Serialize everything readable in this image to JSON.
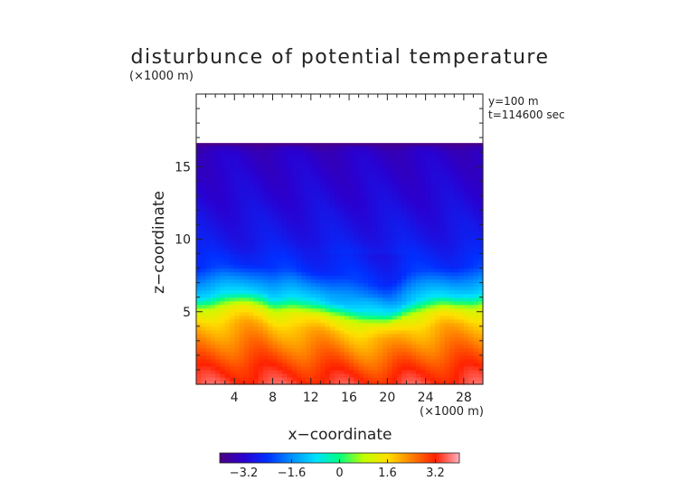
{
  "chart_data": {
    "type": "heatmap",
    "title": "disturbunce of potential temperature",
    "ylabel": "z−coordinate",
    "xlabel": "x−coordinate",
    "y_unit": "(×1000 m)",
    "x_unit": "(×1000 m)",
    "annotations": [
      "y=100 m",
      "t=114600 sec"
    ],
    "xlim": [
      0,
      30
    ],
    "ylim": [
      0,
      20
    ],
    "x_ticks": [
      4,
      8,
      12,
      16,
      20,
      24,
      28
    ],
    "y_ticks": [
      5,
      10,
      15
    ],
    "x_tick_labels": [
      "4",
      "8",
      "12",
      "16",
      "20",
      "24",
      "28"
    ],
    "y_tick_labels": [
      "5",
      "10",
      "15"
    ],
    "colorbar": {
      "range": [
        -4.0,
        4.0
      ],
      "ticks": [
        -3.2,
        -1.6,
        0,
        1.6,
        3.2
      ],
      "tick_labels": [
        "−3.2",
        "−1.6",
        "0",
        "1.6",
        "3.2"
      ],
      "colors": [
        "#4a0080",
        "#2a00d0",
        "#0030ff",
        "#0090ff",
        "#00e0ff",
        "#00ff80",
        "#c0ff00",
        "#ffe000",
        "#ff8000",
        "#ff2000",
        "#ffb0c0"
      ]
    },
    "field_top_z": 16.5,
    "inversion_z": [
      6.0,
      6.1,
      6.2,
      6.3,
      6.3,
      6.4,
      6.4,
      6.3,
      6.0,
      6.0,
      6.0,
      5.8,
      5.7,
      5.7,
      5.6,
      5.5,
      5.3,
      5.0,
      4.8,
      4.7,
      4.7,
      5.1,
      5.6,
      5.8,
      5.9,
      6.0,
      6.1,
      6.1,
      6.2,
      6.2,
      6.3
    ],
    "values_at_z": {
      "z": [
        0.0,
        1.0,
        2.0,
        3.0,
        4.0,
        5.0,
        6.0,
        8.0,
        10.0,
        13.0,
        16.0,
        16.5
      ],
      "theta": [
        3.4,
        3.1,
        2.7,
        2.3,
        1.9,
        1.2,
        -0.8,
        -2.4,
        -2.8,
        -3.1,
        -3.3,
        -3.6
      ]
    }
  }
}
